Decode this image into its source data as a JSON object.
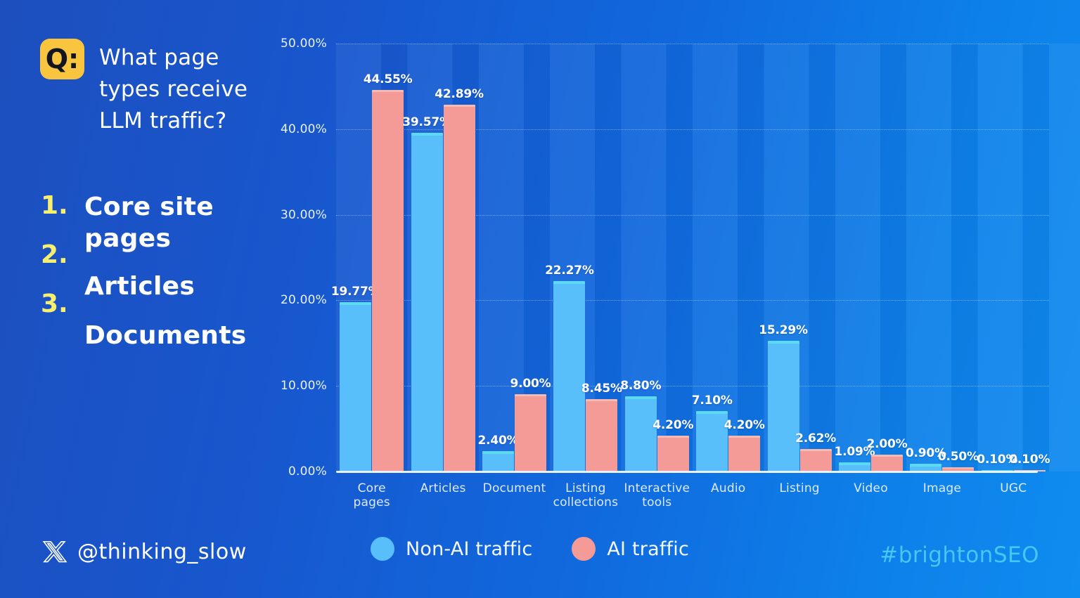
{
  "question": {
    "badge": "Q:",
    "text": "What page\ntypes receive\nLLM traffic?"
  },
  "answers": {
    "numbers": [
      "1.",
      "2.",
      "3."
    ],
    "items": [
      "Core site\npages",
      "Articles",
      "Documents"
    ]
  },
  "footer": {
    "handle": "@thinking_slow",
    "hashtag": "#brightonSEO"
  },
  "legend": [
    {
      "label": "Non-AI traffic",
      "color": "#58bffa"
    },
    {
      "label": "AI traffic",
      "color": "#f59b97"
    }
  ],
  "colors": {
    "background_left": "#1d4fbe",
    "background_right": "#0f8cf0",
    "non_ai_bar": "#58bffa",
    "non_ai_bar_top": "#5bdaf1",
    "ai_bar": "#f59b97",
    "badge_yellow": "#f9c53f",
    "list_number_yellow": "#f7ef6e",
    "hashtag_cyan": "#46c7f3"
  },
  "chart_data": {
    "type": "bar",
    "categories": [
      "Core pages",
      "Articles",
      "Document",
      "Listing collections",
      "Interactive tools",
      "Audio",
      "Listing",
      "Video",
      "Image",
      "UGC"
    ],
    "series": [
      {
        "name": "Non-AI traffic",
        "color": "#58bffa",
        "values": [
          19.77,
          39.57,
          2.4,
          22.27,
          8.8,
          7.1,
          15.29,
          1.09,
          0.9,
          0.1
        ]
      },
      {
        "name": "AI traffic",
        "color": "#f59b97",
        "values": [
          44.55,
          42.89,
          9.0,
          8.45,
          4.2,
          4.2,
          2.62,
          2.0,
          0.5,
          0.1
        ]
      }
    ],
    "value_label_format": "0.00%",
    "yticks": [
      "0.00%",
      "10.00%",
      "20.00%",
      "30.00%",
      "40.00%",
      "50.00%"
    ],
    "ylim": [
      0,
      50
    ],
    "grid": "horizontal-dotted",
    "legend_position": "bottom"
  }
}
